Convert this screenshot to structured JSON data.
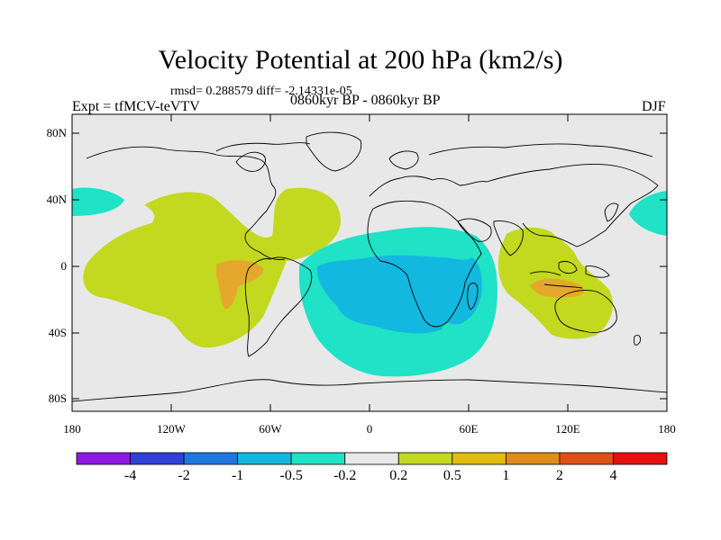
{
  "title": "Velocity Potential at 200 hPa (km2/s)",
  "stats": "rmsd= 0.288579 diff= -2.14331e-05",
  "experiment": "Expt = tfMCV-teVTV",
  "period": "0860kyr BP - 0860kyr BP",
  "season": "DJF",
  "colors": {
    "background": "#e8e8e8",
    "lightgreen": "#c2d91f",
    "orange": "#e5a82c",
    "cyan": "#1fe2c6",
    "blue": "#12b8e0",
    "coast": "#000000"
  },
  "axes": {
    "lon_ticks": [
      "180",
      "120W",
      "60W",
      "0",
      "60E",
      "120E",
      "180"
    ],
    "lat_ticks": [
      "80N",
      "40N",
      "0",
      "40S",
      "80S"
    ]
  },
  "colorbar": {
    "colors": [
      "#8d18e6",
      "#3040d8",
      "#1f78e0",
      "#12b8e0",
      "#1fe2c6",
      "#e8e8e8",
      "#c2d91f",
      "#e0bd10",
      "#e08c1a",
      "#e05016",
      "#e61010"
    ],
    "labels": [
      "-4",
      "-2",
      "-1",
      "-0.5",
      "-0.2",
      "0.2",
      "0.5",
      "1",
      "2",
      "4"
    ]
  }
}
